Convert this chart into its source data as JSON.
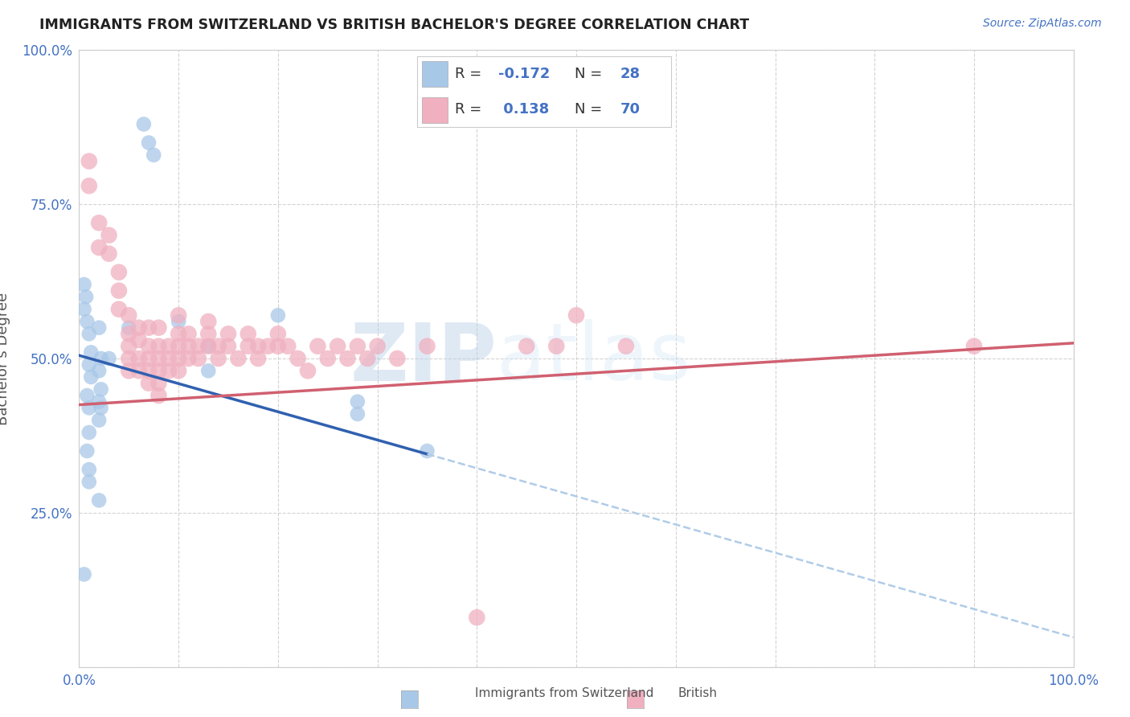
{
  "title": "IMMIGRANTS FROM SWITZERLAND VS BRITISH BACHELOR'S DEGREE CORRELATION CHART",
  "source": "Source: ZipAtlas.com",
  "ylabel": "Bachelor's Degree",
  "xlim": [
    0.0,
    1.0
  ],
  "ylim": [
    0.0,
    1.0
  ],
  "xticks": [
    0.0,
    0.1,
    0.2,
    0.3,
    0.4,
    0.5,
    0.6,
    0.7,
    0.8,
    0.9,
    1.0
  ],
  "yticks": [
    0.0,
    0.25,
    0.5,
    0.75,
    1.0
  ],
  "xticklabels": [
    "0.0%",
    "",
    "",
    "",
    "",
    "",
    "",
    "",
    "",
    "",
    "100.0%"
  ],
  "yticklabels": [
    "",
    "25.0%",
    "50.0%",
    "75.0%",
    "100.0%"
  ],
  "grid_color": "#c8c8c8",
  "background_color": "#ffffff",
  "blue_color": "#a8c8e8",
  "pink_color": "#f0b0c0",
  "blue_line_color": "#3060b0",
  "pink_line_color": "#d06070",
  "dashed_line_color": "#b0cce8",
  "watermark_zip": "ZIP",
  "watermark_atlas": "atlas",
  "swiss_scatter": [
    [
      0.005,
      0.62
    ],
    [
      0.007,
      0.6
    ],
    [
      0.005,
      0.58
    ],
    [
      0.008,
      0.56
    ],
    [
      0.01,
      0.54
    ],
    [
      0.012,
      0.51
    ],
    [
      0.01,
      0.49
    ],
    [
      0.012,
      0.47
    ],
    [
      0.008,
      0.44
    ],
    [
      0.01,
      0.42
    ],
    [
      0.01,
      0.38
    ],
    [
      0.008,
      0.35
    ],
    [
      0.01,
      0.32
    ],
    [
      0.01,
      0.3
    ],
    [
      0.005,
      0.15
    ],
    [
      0.02,
      0.55
    ],
    [
      0.022,
      0.5
    ],
    [
      0.02,
      0.48
    ],
    [
      0.022,
      0.45
    ],
    [
      0.02,
      0.43
    ],
    [
      0.022,
      0.42
    ],
    [
      0.02,
      0.4
    ],
    [
      0.02,
      0.27
    ],
    [
      0.03,
      0.5
    ],
    [
      0.05,
      0.55
    ],
    [
      0.065,
      0.88
    ],
    [
      0.07,
      0.85
    ],
    [
      0.075,
      0.83
    ],
    [
      0.1,
      0.56
    ],
    [
      0.13,
      0.52
    ],
    [
      0.13,
      0.48
    ],
    [
      0.2,
      0.57
    ],
    [
      0.28,
      0.43
    ],
    [
      0.28,
      0.41
    ],
    [
      0.35,
      0.35
    ]
  ],
  "british_scatter": [
    [
      0.01,
      0.82
    ],
    [
      0.01,
      0.78
    ],
    [
      0.02,
      0.72
    ],
    [
      0.02,
      0.68
    ],
    [
      0.03,
      0.7
    ],
    [
      0.03,
      0.67
    ],
    [
      0.04,
      0.64
    ],
    [
      0.04,
      0.61
    ],
    [
      0.04,
      0.58
    ],
    [
      0.05,
      0.57
    ],
    [
      0.05,
      0.54
    ],
    [
      0.05,
      0.52
    ],
    [
      0.05,
      0.5
    ],
    [
      0.05,
      0.48
    ],
    [
      0.06,
      0.55
    ],
    [
      0.06,
      0.53
    ],
    [
      0.06,
      0.5
    ],
    [
      0.06,
      0.48
    ],
    [
      0.07,
      0.55
    ],
    [
      0.07,
      0.52
    ],
    [
      0.07,
      0.5
    ],
    [
      0.07,
      0.48
    ],
    [
      0.07,
      0.46
    ],
    [
      0.08,
      0.55
    ],
    [
      0.08,
      0.52
    ],
    [
      0.08,
      0.5
    ],
    [
      0.08,
      0.48
    ],
    [
      0.08,
      0.46
    ],
    [
      0.08,
      0.44
    ],
    [
      0.09,
      0.52
    ],
    [
      0.09,
      0.5
    ],
    [
      0.09,
      0.48
    ],
    [
      0.1,
      0.57
    ],
    [
      0.1,
      0.54
    ],
    [
      0.1,
      0.52
    ],
    [
      0.1,
      0.5
    ],
    [
      0.1,
      0.48
    ],
    [
      0.11,
      0.54
    ],
    [
      0.11,
      0.52
    ],
    [
      0.11,
      0.5
    ],
    [
      0.12,
      0.52
    ],
    [
      0.12,
      0.5
    ],
    [
      0.13,
      0.56
    ],
    [
      0.13,
      0.54
    ],
    [
      0.13,
      0.52
    ],
    [
      0.14,
      0.52
    ],
    [
      0.14,
      0.5
    ],
    [
      0.15,
      0.54
    ],
    [
      0.15,
      0.52
    ],
    [
      0.16,
      0.5
    ],
    [
      0.17,
      0.54
    ],
    [
      0.17,
      0.52
    ],
    [
      0.18,
      0.52
    ],
    [
      0.18,
      0.5
    ],
    [
      0.19,
      0.52
    ],
    [
      0.2,
      0.54
    ],
    [
      0.2,
      0.52
    ],
    [
      0.21,
      0.52
    ],
    [
      0.22,
      0.5
    ],
    [
      0.23,
      0.48
    ],
    [
      0.24,
      0.52
    ],
    [
      0.25,
      0.5
    ],
    [
      0.26,
      0.52
    ],
    [
      0.27,
      0.5
    ],
    [
      0.28,
      0.52
    ],
    [
      0.29,
      0.5
    ],
    [
      0.3,
      0.52
    ],
    [
      0.32,
      0.5
    ],
    [
      0.35,
      0.52
    ],
    [
      0.4,
      0.08
    ],
    [
      0.45,
      0.52
    ],
    [
      0.48,
      0.52
    ],
    [
      0.5,
      0.57
    ],
    [
      0.55,
      0.52
    ],
    [
      0.9,
      0.52
    ]
  ],
  "blue_line_x_end": 0.35,
  "blue_line_start_y": 0.505,
  "blue_line_end_y": 0.345,
  "pink_line_start_y": 0.425,
  "pink_line_end_y": 0.525
}
